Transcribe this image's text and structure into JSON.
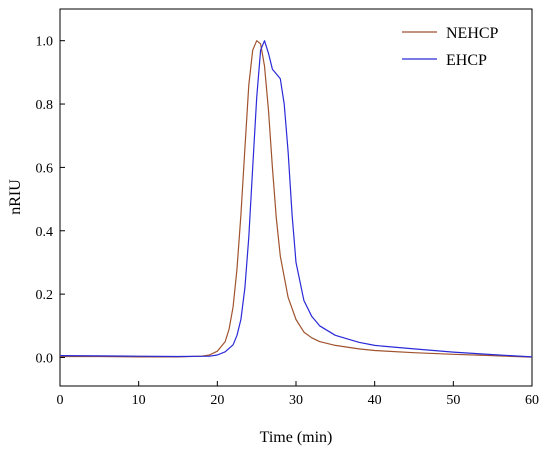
{
  "chart_data": {
    "type": "line",
    "title": "",
    "xlabel": "Time (min)",
    "ylabel": "nRIU",
    "xlim": [
      0,
      60
    ],
    "ylim": [
      -0.09,
      1.1
    ],
    "xticks": [
      "0",
      "10",
      "20",
      "30",
      "40",
      "50",
      "60"
    ],
    "yticks": [
      "0.0",
      "0.2",
      "0.4",
      "0.6",
      "0.8",
      "1.0"
    ],
    "grid": false,
    "legend_position": "top-right",
    "series": [
      {
        "name": "NEHCP",
        "color": "#a0522d",
        "x": [
          0,
          5,
          10,
          15,
          18,
          19,
          20,
          21,
          21.5,
          22,
          22.5,
          23,
          23.5,
          24,
          24.5,
          25,
          25.5,
          26,
          26.5,
          27,
          27.5,
          28,
          29,
          30,
          31,
          32,
          33,
          35,
          38,
          40,
          45,
          50,
          55,
          60
        ],
        "y": [
          0.003,
          0.003,
          0.002,
          0.002,
          0.004,
          0.008,
          0.02,
          0.05,
          0.09,
          0.16,
          0.28,
          0.45,
          0.66,
          0.86,
          0.97,
          1.0,
          0.99,
          0.92,
          0.78,
          0.6,
          0.44,
          0.32,
          0.19,
          0.12,
          0.08,
          0.062,
          0.05,
          0.038,
          0.027,
          0.022,
          0.015,
          0.01,
          0.006,
          0.001
        ]
      },
      {
        "name": "EHCP",
        "color": "#2a2ad8",
        "x": [
          0,
          5,
          10,
          15,
          19,
          20,
          21,
          22,
          22.5,
          23,
          23.5,
          24,
          24.5,
          25,
          25.5,
          26,
          26.5,
          27,
          27.5,
          28,
          28.5,
          29,
          29.5,
          30,
          31,
          32,
          33,
          35,
          38,
          40,
          45,
          50,
          55,
          60
        ],
        "y": [
          0.006,
          0.005,
          0.004,
          0.003,
          0.004,
          0.008,
          0.018,
          0.04,
          0.07,
          0.12,
          0.22,
          0.38,
          0.6,
          0.82,
          0.97,
          1.0,
          0.96,
          0.91,
          0.895,
          0.88,
          0.8,
          0.65,
          0.45,
          0.3,
          0.18,
          0.13,
          0.1,
          0.07,
          0.048,
          0.038,
          0.027,
          0.017,
          0.009,
          0.002
        ]
      }
    ]
  }
}
